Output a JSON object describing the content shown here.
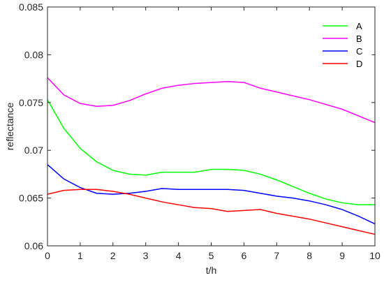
{
  "chart_data": {
    "type": "line",
    "xlabel": "t/h",
    "ylabel": "reflectance",
    "xlim": [
      0,
      10
    ],
    "ylim": [
      0.06,
      0.085
    ],
    "xticks": [
      "0",
      "1",
      "2",
      "3",
      "4",
      "5",
      "6",
      "7",
      "8",
      "9",
      "10"
    ],
    "yticks": [
      "0.06",
      "0.065",
      "0.07",
      "0.075",
      "0.08",
      "0.085"
    ],
    "grid": false,
    "legend_position": "top-right",
    "x": [
      0,
      0.5,
      1,
      1.5,
      2,
      2.5,
      3,
      3.5,
      4,
      4.5,
      5,
      5.5,
      6,
      6.5,
      7,
      7.5,
      8,
      8.5,
      9,
      9.5,
      10
    ],
    "series": [
      {
        "name": "A",
        "color": "#00ff00",
        "values": [
          0.0753,
          0.0723,
          0.0702,
          0.0688,
          0.0679,
          0.0675,
          0.0674,
          0.0677,
          0.0677,
          0.0677,
          0.068,
          0.068,
          0.0679,
          0.0675,
          0.0669,
          0.0662,
          0.0655,
          0.0649,
          0.0645,
          0.0643,
          0.0643
        ]
      },
      {
        "name": "B",
        "color": "#ff00ff",
        "values": [
          0.0776,
          0.0758,
          0.0749,
          0.0746,
          0.0747,
          0.0752,
          0.0759,
          0.0765,
          0.0768,
          0.077,
          0.0771,
          0.0772,
          0.0771,
          0.0765,
          0.0761,
          0.0757,
          0.0753,
          0.0748,
          0.0743,
          0.0736,
          0.0729
        ]
      },
      {
        "name": "C",
        "color": "#0000ff",
        "values": [
          0.0685,
          0.067,
          0.0661,
          0.0655,
          0.0654,
          0.0655,
          0.0657,
          0.066,
          0.0659,
          0.0659,
          0.0659,
          0.0659,
          0.0658,
          0.0655,
          0.0652,
          0.065,
          0.0647,
          0.0643,
          0.0638,
          0.0631,
          0.0623
        ]
      },
      {
        "name": "D",
        "color": "#ff0000",
        "values": [
          0.0654,
          0.0658,
          0.0659,
          0.0659,
          0.0657,
          0.0654,
          0.065,
          0.0646,
          0.0643,
          0.064,
          0.0639,
          0.0636,
          0.0637,
          0.0638,
          0.0634,
          0.0631,
          0.0628,
          0.0624,
          0.062,
          0.0616,
          0.0612
        ]
      }
    ]
  }
}
